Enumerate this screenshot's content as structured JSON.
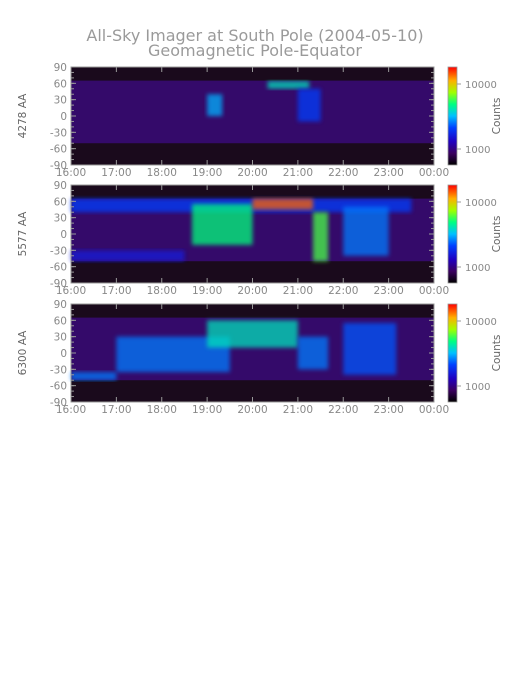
{
  "figure": {
    "title": "All-Sky Imager at South Pole (2004-05-10)",
    "subtitle": "Geomagnetic Pole-Equator"
  },
  "chart_data": [
    {
      "type": "heatmap",
      "ylabel": "4278 AA",
      "xlabel": "",
      "x_ticks": [
        "16:00",
        "17:00",
        "18:00",
        "19:00",
        "20:00",
        "21:00",
        "22:00",
        "23:00",
        "00:00"
      ],
      "y_ticks": [
        "90",
        "60",
        "30",
        "0",
        "-30",
        "-60",
        "-90"
      ],
      "xlim": [
        "16:00",
        "00:00"
      ],
      "ylim": [
        -90,
        90
      ],
      "colorbar": {
        "label": "Counts",
        "ticks": [
          "10000",
          "1000"
        ],
        "scale": "log"
      },
      "valid_y_range": [
        -50,
        65
      ],
      "features": [
        {
          "time_start": "19:00",
          "time_end": "19:20",
          "lat_min": 0,
          "lat_max": 40,
          "counts": 3000
        },
        {
          "time_start": "20:20",
          "time_end": "21:15",
          "lat_min": 50,
          "lat_max": 64,
          "counts": 4000
        },
        {
          "time_start": "21:00",
          "time_end": "21:30",
          "lat_min": -10,
          "lat_max": 50,
          "counts": 2000
        }
      ]
    },
    {
      "type": "heatmap",
      "ylabel": "5577 AA",
      "xlabel": "",
      "x_ticks": [
        "16:00",
        "17:00",
        "18:00",
        "19:00",
        "20:00",
        "21:00",
        "22:00",
        "23:00",
        "00:00"
      ],
      "y_ticks": [
        "90",
        "60",
        "30",
        "0",
        "-30",
        "-60",
        "-90"
      ],
      "xlim": [
        "16:00",
        "00:00"
      ],
      "ylim": [
        -90,
        90
      ],
      "colorbar": {
        "label": "Counts",
        "ticks": [
          "10000",
          "1000"
        ],
        "scale": "log"
      },
      "valid_y_range": [
        -50,
        65
      ],
      "features": [
        {
          "time_start": "16:00",
          "time_end": "18:30",
          "lat_min": -50,
          "lat_max": -30,
          "counts": 1500
        },
        {
          "time_start": "16:00",
          "time_end": "23:30",
          "lat_min": 40,
          "lat_max": 65,
          "counts": 2000
        },
        {
          "time_start": "18:40",
          "time_end": "20:00",
          "lat_min": -20,
          "lat_max": 55,
          "counts": 5000
        },
        {
          "time_start": "20:00",
          "time_end": "21:20",
          "lat_min": 45,
          "lat_max": 65,
          "counts": 15000
        },
        {
          "time_start": "21:20",
          "time_end": "21:40",
          "lat_min": -50,
          "lat_max": 40,
          "counts": 6000
        },
        {
          "time_start": "22:00",
          "time_end": "23:00",
          "lat_min": -40,
          "lat_max": 50,
          "counts": 2500
        }
      ]
    },
    {
      "type": "heatmap",
      "ylabel": "6300 AA",
      "xlabel": "",
      "x_ticks": [
        "16:00",
        "17:00",
        "18:00",
        "19:00",
        "20:00",
        "21:00",
        "22:00",
        "23:00",
        "00:00"
      ],
      "y_ticks": [
        "90",
        "60",
        "30",
        "0",
        "-30",
        "-60",
        "-90"
      ],
      "xlim": [
        "16:00",
        "00:00"
      ],
      "ylim": [
        -90,
        90
      ],
      "colorbar": {
        "label": "Counts",
        "ticks": [
          "10000",
          "1000"
        ],
        "scale": "log"
      },
      "valid_y_range": [
        -50,
        65
      ],
      "features": [
        {
          "time_start": "16:00",
          "time_end": "17:00",
          "lat_min": -50,
          "lat_max": -35,
          "counts": 2500
        },
        {
          "time_start": "17:00",
          "time_end": "19:30",
          "lat_min": -35,
          "lat_max": 30,
          "counts": 2500
        },
        {
          "time_start": "19:00",
          "time_end": "21:00",
          "lat_min": 10,
          "lat_max": 60,
          "counts": 4000
        },
        {
          "time_start": "21:00",
          "time_end": "21:40",
          "lat_min": -30,
          "lat_max": 30,
          "counts": 2500
        },
        {
          "time_start": "22:00",
          "time_end": "23:10",
          "lat_min": -40,
          "lat_max": 55,
          "counts": 2200
        }
      ]
    }
  ]
}
